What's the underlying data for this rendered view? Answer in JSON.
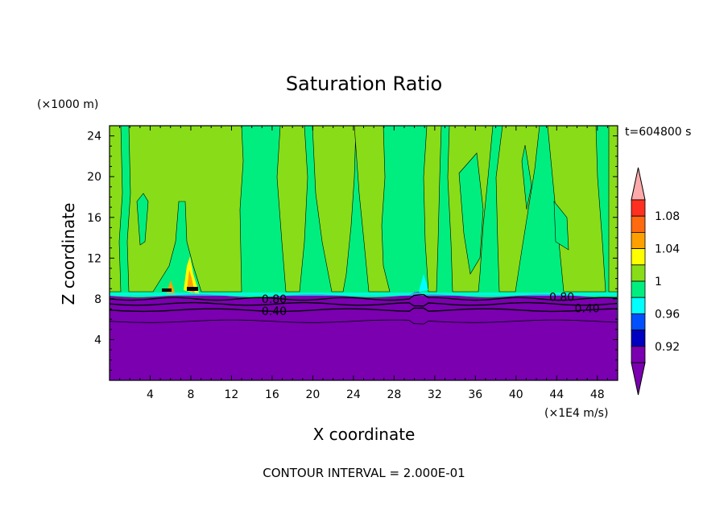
{
  "chart_data": {
    "type": "heatmap",
    "title": "Saturation Ratio",
    "xlabel": "X coordinate",
    "ylabel": "Z coordinate",
    "x_unit": "(×1E4 m/s)",
    "y_unit": "(×1000 m)",
    "time_label": "t=604800 s",
    "footer": "CONTOUR INTERVAL = 2.000E-01",
    "xlim": [
      0,
      50
    ],
    "ylim": [
      0,
      25
    ],
    "x_ticks": [
      4,
      8,
      12,
      16,
      20,
      24,
      28,
      32,
      36,
      40,
      44,
      48
    ],
    "y_ticks": [
      4,
      8,
      12,
      16,
      20,
      24
    ],
    "contour_labels": [
      {
        "text": "0.80",
        "x": 16.2,
        "z": 8.0
      },
      {
        "text": "0.40",
        "x": 16.2,
        "z": 6.8
      },
      {
        "text": "0.80",
        "x": 44.5,
        "z": 8.2
      },
      {
        "text": "0.40",
        "x": 47.0,
        "z": 7.1
      }
    ],
    "colorbar": {
      "levels": [
        {
          "value": "1.08",
          "color": "#ff3020"
        },
        {
          "value": "1.04",
          "color": "#ffa000"
        },
        {
          "value": "1",
          "color": "#88dd18"
        },
        {
          "value": "0.96",
          "color": "#00ee80"
        },
        {
          "value": "0.92",
          "color": "#0050ff"
        }
      ],
      "bands": [
        "#ffaaaa",
        "#ff3020",
        "#ff6a10",
        "#ffa000",
        "#ffff00",
        "#88dd18",
        "#00ee80",
        "#00ffff",
        "#0050ff",
        "#0000c0",
        "#7a00b0",
        "#7a00b0"
      ]
    },
    "regions": {
      "lower_layer_value": "< 0.92",
      "lower_layer_top_z": 8.3,
      "upper_colors": [
        "#88dd18",
        "#00ee80"
      ]
    }
  }
}
